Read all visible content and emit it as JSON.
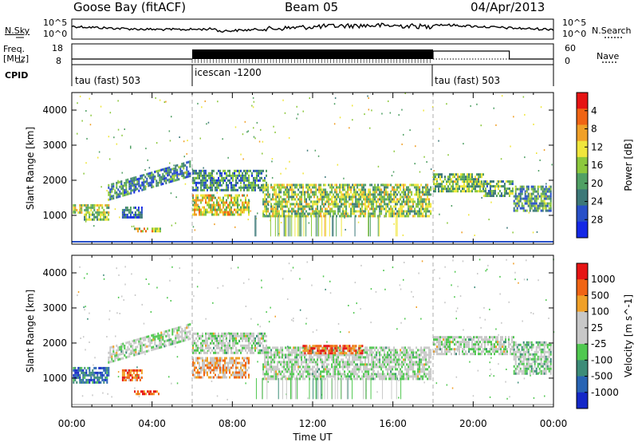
{
  "header": {
    "station": "Goose Bay (fitACF)",
    "beam": "Beam 05",
    "date": "04/Apr/2013"
  },
  "summary": {
    "nsky_label": "N.Sky",
    "nsearch_label": "N.Search",
    "freq_label_1": "Freq.",
    "freq_label_2": "[MHz]",
    "nave_label": "Nave",
    "cpid_label": "CPID",
    "noise_ticks_left": [
      "10^5",
      "10^0"
    ],
    "noise_ticks_right": [
      "10^5",
      "10^0"
    ],
    "freq_ticks": [
      "18",
      "8"
    ],
    "nave_ticks": [
      "60",
      "0"
    ],
    "cpid_segments": [
      {
        "start": 0,
        "end": 6,
        "name": "tau (fast) 503"
      },
      {
        "start": 6,
        "end": 18,
        "name": "icescan -1200"
      },
      {
        "start": 18,
        "end": 24,
        "name": "tau (fast) 503"
      }
    ]
  },
  "chart_data": [
    {
      "type": "heatmap",
      "title": "",
      "xlabel": "",
      "ylabel": "Slant Range [km]",
      "xlim": [
        0,
        24
      ],
      "ylim": [
        180,
        4500
      ],
      "yticks": [
        1000,
        2000,
        3000,
        4000
      ],
      "colorbar": {
        "label": "Power [dB]",
        "ticks": [
          "4",
          "8",
          "12",
          "16",
          "20",
          "24",
          "28"
        ],
        "colors": [
          "#1428e6",
          "#2850c8",
          "#3c7878",
          "#50a064",
          "#8cc83c",
          "#f0e63c",
          "#f0a028",
          "#f06414",
          "#e61414"
        ]
      },
      "regions": [
        {
          "t0": 0.05,
          "t1": 1.8,
          "r0": 1050,
          "r1": 1320,
          "level": 0.55
        },
        {
          "t0": 0.6,
          "t1": 1.8,
          "r0": 850,
          "r1": 1050,
          "level": 0.45
        },
        {
          "t0": 1.8,
          "t1": 5.9,
          "r0": 1400,
          "r1": 2450,
          "level": 0.3,
          "band": true
        },
        {
          "t0": 2.5,
          "t1": 3.5,
          "r0": 950,
          "r1": 1250,
          "level": 0.25
        },
        {
          "t0": 3.1,
          "t1": 4.4,
          "r0": 520,
          "r1": 650,
          "level": 0.6
        },
        {
          "t0": 6.0,
          "t1": 8.8,
          "r0": 1000,
          "r1": 1600,
          "level": 0.6
        },
        {
          "t0": 6.0,
          "t1": 9.7,
          "r0": 1750,
          "r1": 2300,
          "level": 0.3
        },
        {
          "t0": 9.5,
          "t1": 17.9,
          "r0": 1000,
          "r1": 1900,
          "level": 0.5
        },
        {
          "t0": 18.0,
          "t1": 20.5,
          "r0": 1700,
          "r1": 2200,
          "level": 0.45
        },
        {
          "t0": 20.5,
          "t1": 22.0,
          "r0": 1550,
          "r1": 2000,
          "level": 0.4
        },
        {
          "t0": 22.0,
          "t1": 23.9,
          "r0": 1100,
          "r1": 1850,
          "level": 0.35
        }
      ]
    },
    {
      "type": "heatmap",
      "title": "",
      "xlabel": "Time UT",
      "ylabel": "Slant Range [km]",
      "xlim": [
        0,
        24
      ],
      "ylim": [
        180,
        4500
      ],
      "yticks": [
        1000,
        2000,
        3000,
        4000
      ],
      "xticks": [
        "00:00",
        "04:00",
        "08:00",
        "12:00",
        "16:00",
        "20:00",
        "00:00"
      ],
      "colorbar": {
        "label": "Velocity [m s^-1]",
        "ticks": [
          "1000",
          "500",
          "100",
          "25",
          "-25",
          "-100",
          "-500",
          "-1000"
        ],
        "colors": [
          "#1428c8",
          "#2864b4",
          "#3c8c78",
          "#50c850",
          "#c8c8c8",
          "#c8c8c8",
          "#f0a028",
          "#f06414",
          "#e61414"
        ]
      },
      "regions": [
        {
          "t0": 0.05,
          "t1": 1.8,
          "r0": 850,
          "r1": 1320,
          "level": 0.2
        },
        {
          "t0": 1.8,
          "t1": 5.9,
          "r0": 1400,
          "r1": 2450,
          "level": 0.5,
          "band": true
        },
        {
          "t0": 2.5,
          "t1": 3.5,
          "r0": 950,
          "r1": 1250,
          "level": 0.8
        },
        {
          "t0": 3.1,
          "t1": 4.4,
          "r0": 520,
          "r1": 650,
          "level": 0.85
        },
        {
          "t0": 6.0,
          "t1": 8.8,
          "r0": 1000,
          "r1": 1600,
          "level": 0.7
        },
        {
          "t0": 6.0,
          "t1": 9.7,
          "r0": 1750,
          "r1": 2300,
          "level": 0.5
        },
        {
          "t0": 9.5,
          "t1": 17.9,
          "r0": 1000,
          "r1": 1900,
          "level": 0.5
        },
        {
          "t0": 11.5,
          "t1": 14.5,
          "r0": 1700,
          "r1": 1950,
          "level": 0.85
        },
        {
          "t0": 18.0,
          "t1": 22.0,
          "r0": 1700,
          "r1": 2200,
          "level": 0.5
        },
        {
          "t0": 22.0,
          "t1": 23.9,
          "r0": 1100,
          "r1": 2050,
          "level": 0.45
        }
      ]
    }
  ]
}
